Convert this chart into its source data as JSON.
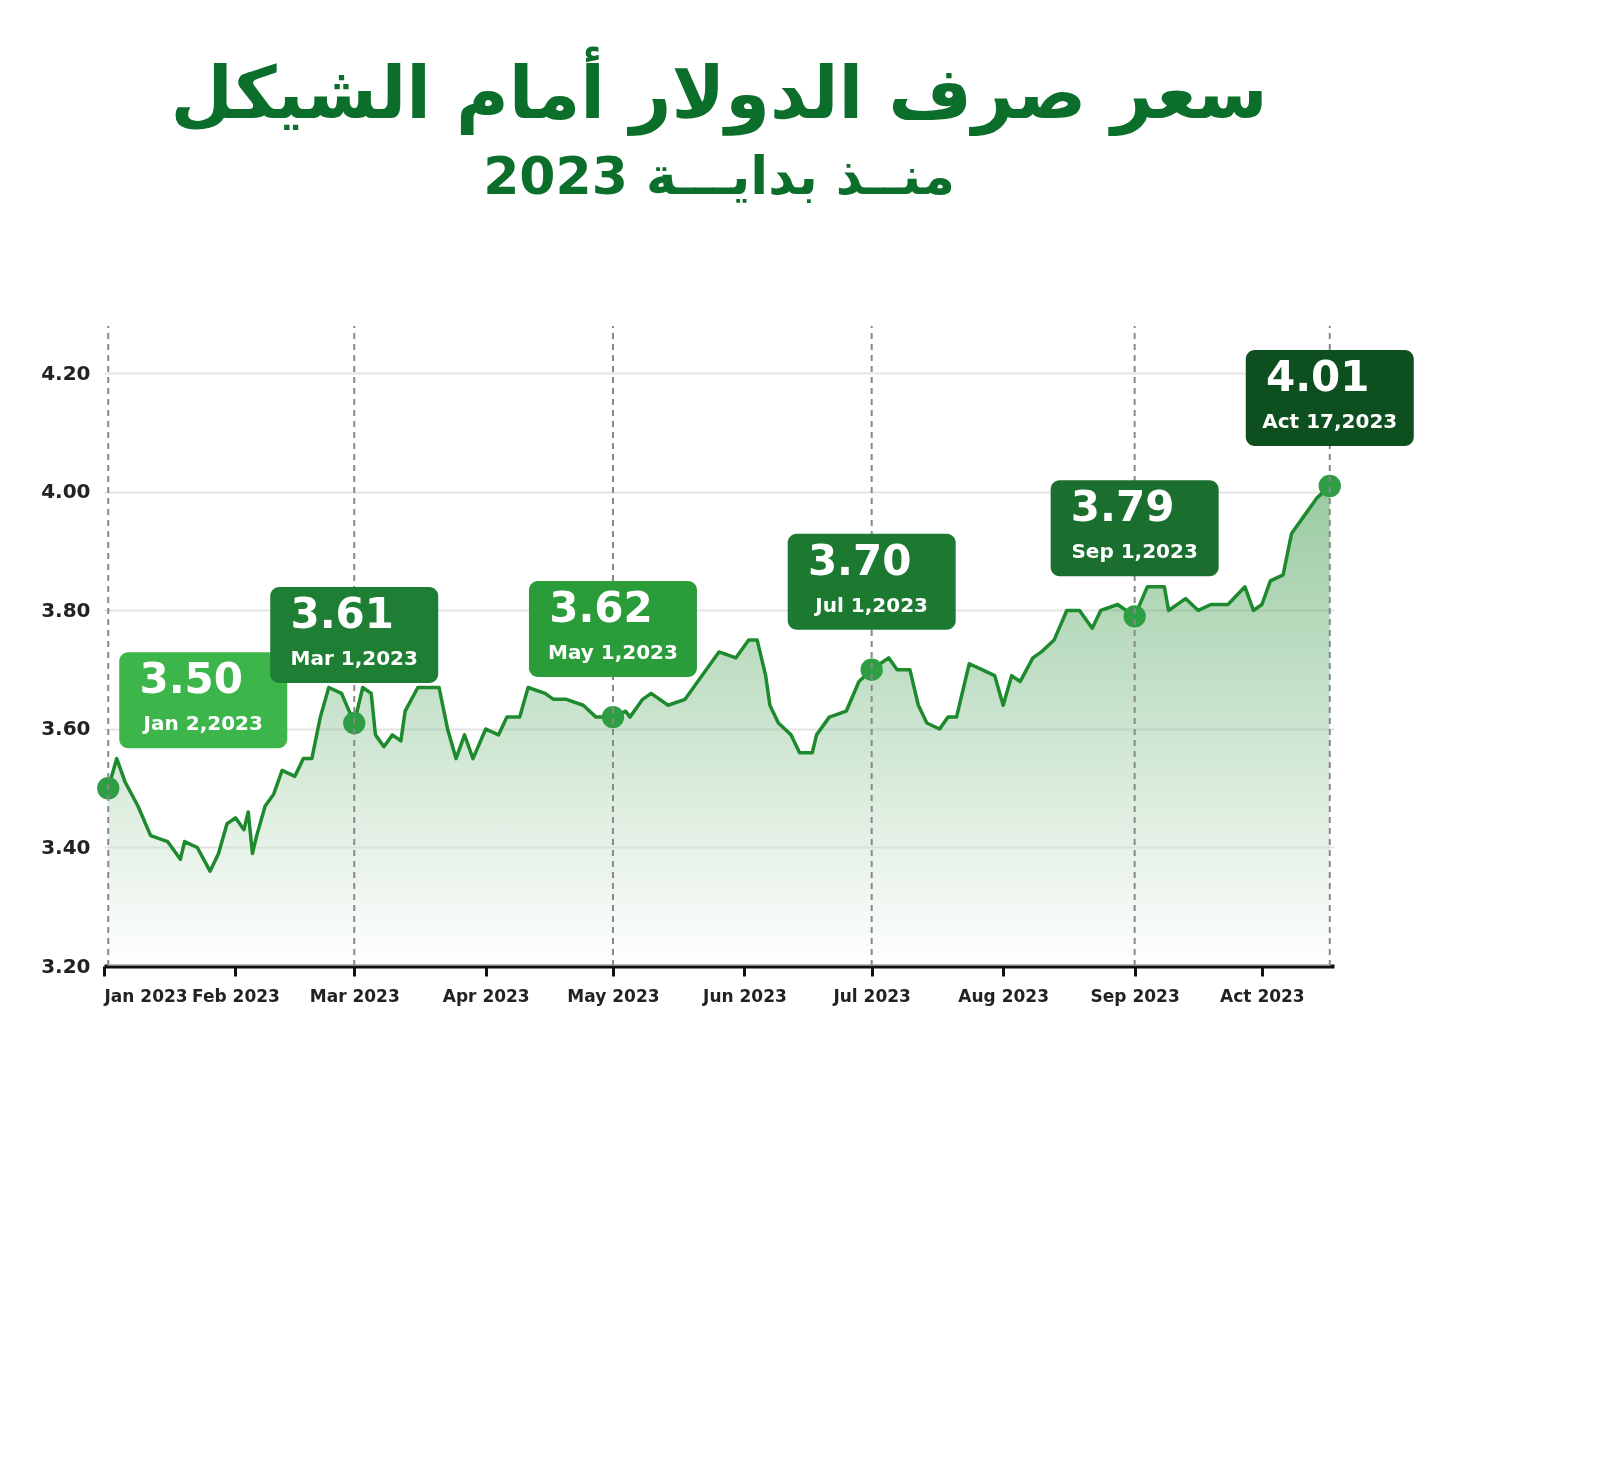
{
  "chart_data": {
    "type": "area",
    "title": "سعر صرف الدولار أمام الشيكل",
    "subtitle": "منــذ بدايـــة 2023",
    "x": [
      "2023-01-02",
      "2023-01-04",
      "2023-01-06",
      "2023-01-09",
      "2023-01-12",
      "2023-01-16",
      "2023-01-19",
      "2023-01-20",
      "2023-01-23",
      "2023-01-26",
      "2023-01-28",
      "2023-01-30",
      "2023-02-01",
      "2023-02-03",
      "2023-02-04",
      "2023-02-05",
      "2023-02-06",
      "2023-02-08",
      "2023-02-10",
      "2023-02-12",
      "2023-02-15",
      "2023-02-17",
      "2023-02-19",
      "2023-02-21",
      "2023-02-23",
      "2023-02-26",
      "2023-03-01",
      "2023-03-03",
      "2023-03-05",
      "2023-03-06",
      "2023-03-08",
      "2023-03-10",
      "2023-03-12",
      "2023-03-13",
      "2023-03-16",
      "2023-03-21",
      "2023-03-23",
      "2023-03-25",
      "2023-03-27",
      "2023-03-29",
      "2023-04-01",
      "2023-04-04",
      "2023-04-06",
      "2023-04-09",
      "2023-04-11",
      "2023-04-15",
      "2023-04-17",
      "2023-04-20",
      "2023-04-24",
      "2023-04-27",
      "2023-05-01",
      "2023-05-04",
      "2023-05-05",
      "2023-05-08",
      "2023-05-10",
      "2023-05-14",
      "2023-05-18",
      "2023-05-21",
      "2023-05-24",
      "2023-05-26",
      "2023-05-30",
      "2023-06-02",
      "2023-06-04",
      "2023-06-06",
      "2023-06-07",
      "2023-06-09",
      "2023-06-12",
      "2023-06-14",
      "2023-06-17",
      "2023-06-18",
      "2023-06-21",
      "2023-06-25",
      "2023-06-28",
      "2023-07-01",
      "2023-07-03",
      "2023-07-05",
      "2023-07-07",
      "2023-07-10",
      "2023-07-12",
      "2023-07-14",
      "2023-07-17",
      "2023-07-19",
      "2023-07-21",
      "2023-07-24",
      "2023-07-27",
      "2023-07-30",
      "2023-08-01",
      "2023-08-03",
      "2023-08-05",
      "2023-08-08",
      "2023-08-10",
      "2023-08-13",
      "2023-08-16",
      "2023-08-19",
      "2023-08-22",
      "2023-08-24",
      "2023-08-28",
      "2023-09-01",
      "2023-09-04",
      "2023-09-08",
      "2023-09-09",
      "2023-09-13",
      "2023-09-16",
      "2023-09-19",
      "2023-09-23",
      "2023-09-27",
      "2023-09-29",
      "2023-10-01",
      "2023-10-03",
      "2023-10-06",
      "2023-10-08",
      "2023-10-11",
      "2023-10-14",
      "2023-10-17"
    ],
    "series": [
      {
        "color": "#1e8a2e",
        "values": [
          3.5,
          3.55,
          3.51,
          3.47,
          3.42,
          3.41,
          3.38,
          3.41,
          3.4,
          3.36,
          3.39,
          3.44,
          3.45,
          3.43,
          3.46,
          3.39,
          3.42,
          3.47,
          3.49,
          3.53,
          3.52,
          3.55,
          3.55,
          3.62,
          3.67,
          3.66,
          3.61,
          3.67,
          3.66,
          3.59,
          3.57,
          3.59,
          3.58,
          3.63,
          3.67,
          3.67,
          3.6,
          3.55,
          3.59,
          3.55,
          3.6,
          3.59,
          3.62,
          3.62,
          3.67,
          3.66,
          3.65,
          3.65,
          3.64,
          3.62,
          3.62,
          3.63,
          3.62,
          3.65,
          3.66,
          3.64,
          3.65,
          3.68,
          3.71,
          3.73,
          3.72,
          3.75,
          3.75,
          3.69,
          3.64,
          3.61,
          3.59,
          3.56,
          3.56,
          3.59,
          3.62,
          3.63,
          3.68,
          3.7,
          3.71,
          3.72,
          3.7,
          3.7,
          3.64,
          3.61,
          3.6,
          3.62,
          3.62,
          3.71,
          3.7,
          3.69,
          3.64,
          3.69,
          3.68,
          3.72,
          3.73,
          3.75,
          3.8,
          3.8,
          3.77,
          3.8,
          3.81,
          3.79,
          3.84,
          3.84,
          3.8,
          3.82,
          3.8,
          3.81,
          3.81,
          3.84,
          3.8,
          3.81,
          3.85,
          3.86,
          3.93,
          3.96,
          3.99,
          4.01
        ]
      },
      {
        "type": "scatter",
        "color": "#2e9e45",
        "marker": "circle",
        "x": [
          "2023-01-02",
          "2023-03-01",
          "2023-05-01",
          "2023-07-01",
          "2023-09-01",
          "2023-10-17"
        ],
        "values": [
          3.5,
          3.61,
          3.62,
          3.7,
          3.79,
          4.01
        ]
      }
    ],
    "xlim": [
      "2023-01-01",
      "2023-10-18"
    ],
    "xticks": [
      {
        "value": "2023-01-01",
        "label": "Jan 2023"
      },
      {
        "value": "2023-02-01",
        "label": "Feb 2023"
      },
      {
        "value": "2023-03-01",
        "label": "Mar 2023"
      },
      {
        "value": "2023-04-01",
        "label": "Apr 2023"
      },
      {
        "value": "2023-05-01",
        "label": "May 2023"
      },
      {
        "value": "2023-06-01",
        "label": "Jun 2023"
      },
      {
        "value": "2023-07-01",
        "label": "Jul 2023"
      },
      {
        "value": "2023-08-01",
        "label": "Aug 2023"
      },
      {
        "value": "2023-09-01",
        "label": "Sep 2023"
      },
      {
        "value": "2023-10-01",
        "label": "Act 2023"
      }
    ],
    "ylim": [
      3.2,
      4.28
    ],
    "yticks": [
      {
        "value": 3.2,
        "label": "3.20"
      },
      {
        "value": 3.4,
        "label": "3.40"
      },
      {
        "value": 3.6,
        "label": "3.60"
      },
      {
        "value": 3.8,
        "label": "3.80"
      },
      {
        "value": 4.0,
        "label": "4.00"
      },
      {
        "value": 4.2,
        "label": "4.20"
      }
    ],
    "grid": "y",
    "legend": false,
    "marker": "none",
    "ref_lines": [
      {
        "axis": "x",
        "value": "2023-01-02",
        "color": "#888888",
        "line_style": "dashed"
      },
      {
        "axis": "x",
        "value": "2023-03-01",
        "color": "#888888",
        "line_style": "dashed"
      },
      {
        "axis": "x",
        "value": "2023-05-01",
        "color": "#888888",
        "line_style": "dashed"
      },
      {
        "axis": "x",
        "value": "2023-07-01",
        "color": "#888888",
        "line_style": "dashed"
      },
      {
        "axis": "x",
        "value": "2023-09-01",
        "color": "#888888",
        "line_style": "dashed"
      },
      {
        "axis": "x",
        "value": "2023-10-17",
        "color": "#888888",
        "line_style": "dashed"
      }
    ],
    "annotations": [
      {
        "text": "3.50\nJan 2,2023",
        "x": "2023-01-02",
        "y": 3.5
      },
      {
        "text": "3.61\nMar 1,2023",
        "x": "2023-03-01",
        "y": 3.61
      },
      {
        "text": "3.62\nMay 1,2023",
        "x": "2023-05-01",
        "y": 3.62
      },
      {
        "text": "3.70\nJul 1,2023",
        "x": "2023-07-01",
        "y": 3.7
      },
      {
        "text": "3.79\nSep 1,2023",
        "x": "2023-09-01",
        "y": 3.79
      },
      {
        "text": "4.01\nAct 17,2023",
        "x": "2023-10-17",
        "y": 4.01
      }
    ]
  }
}
